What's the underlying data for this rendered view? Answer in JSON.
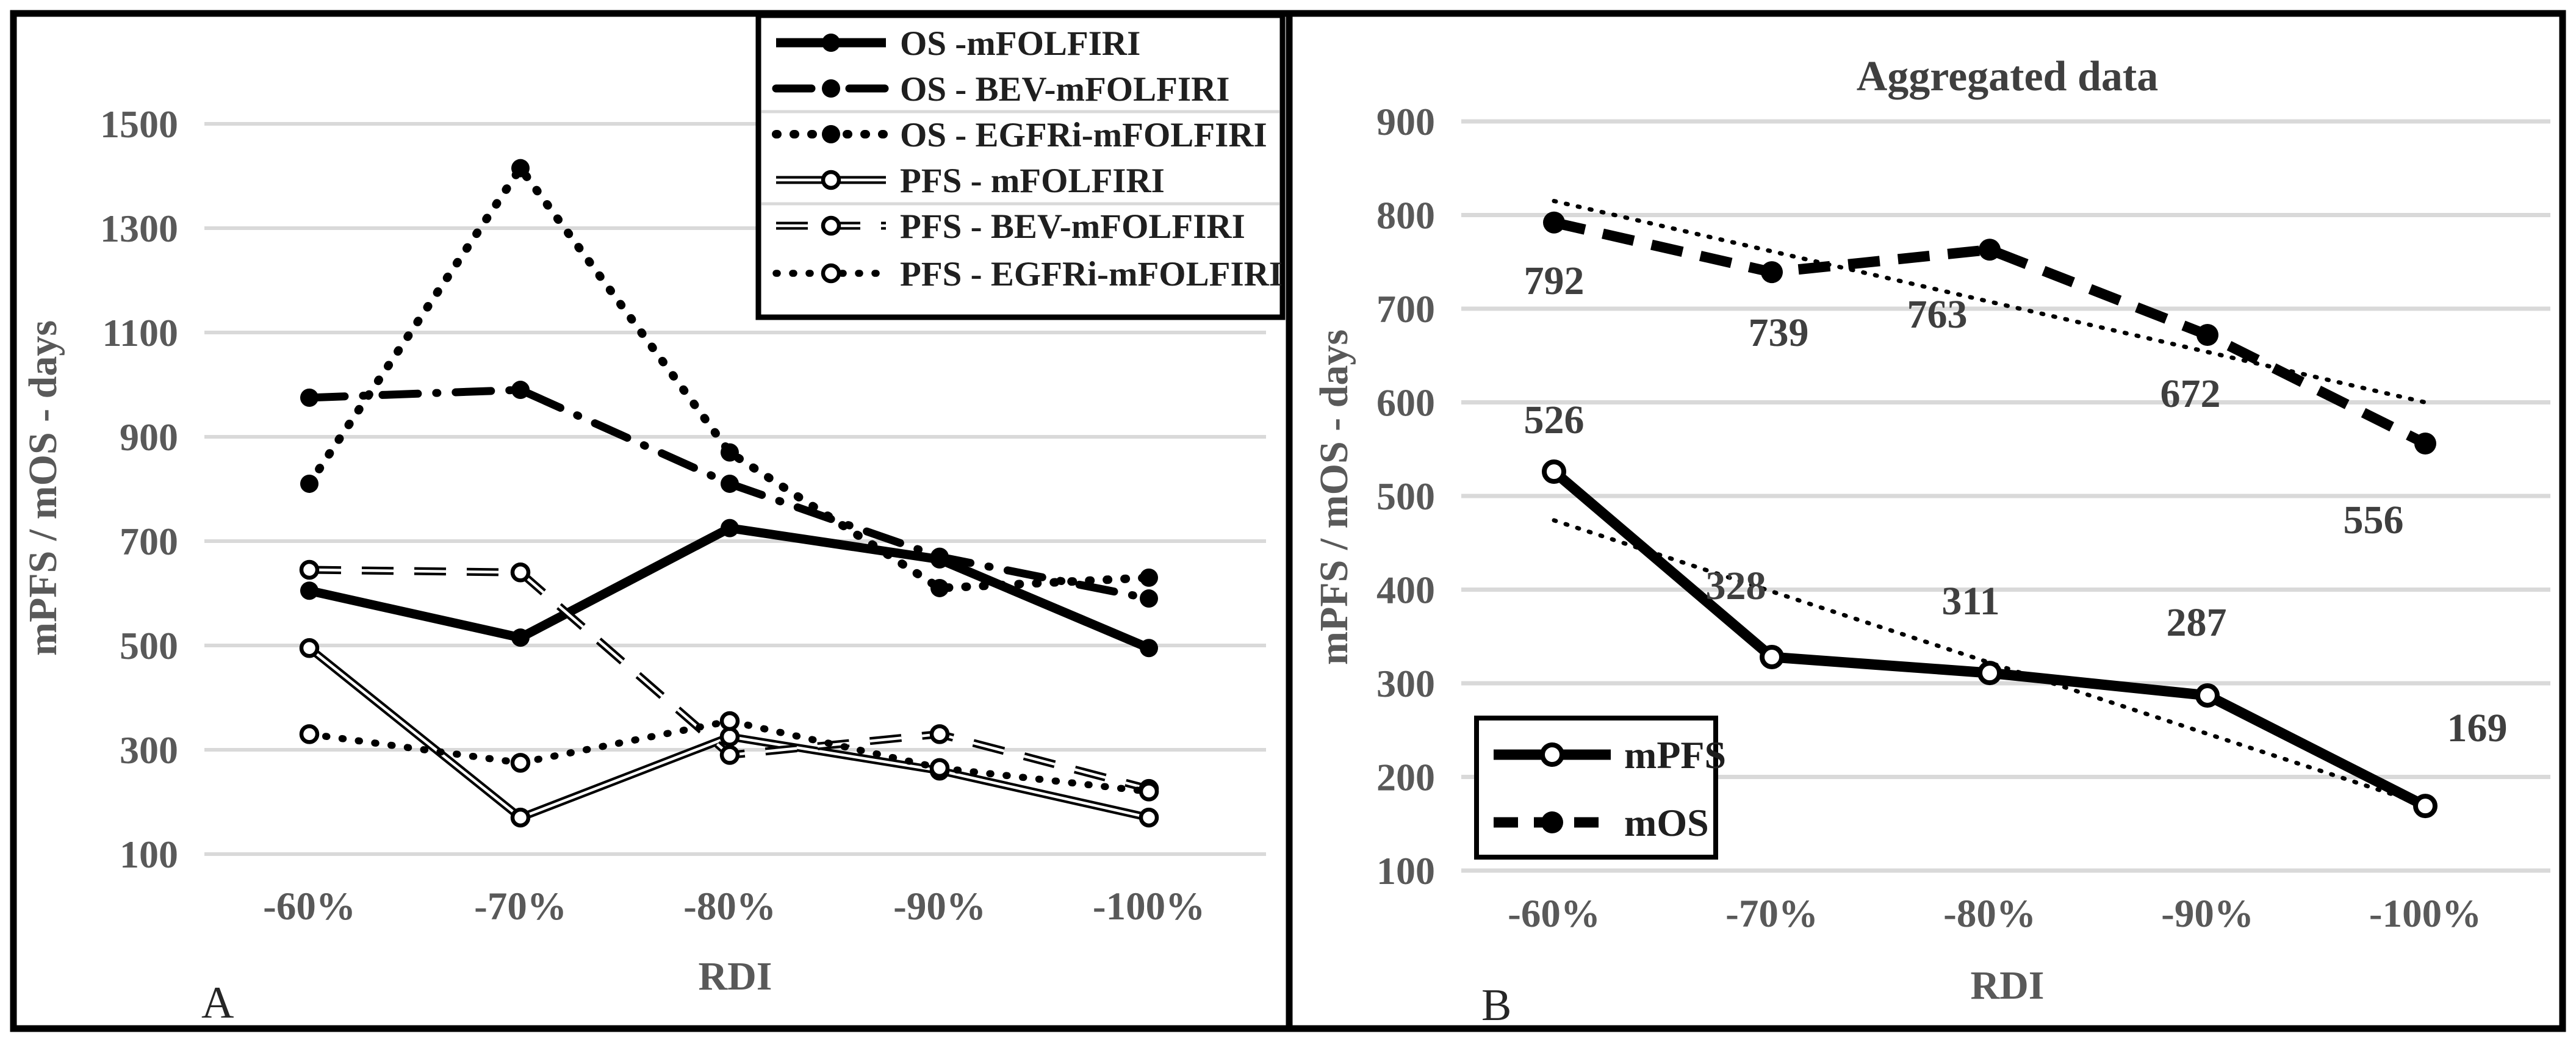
{
  "figure": {
    "panel_a_letter": "A",
    "panel_b_letter": "B",
    "background_color": "#ffffff",
    "frame_color": "#000000",
    "gridline_color": "#d9d9d9",
    "axis_text_color": "#595959",
    "series_color": "#000000"
  },
  "chart_data": [
    {
      "type": "line",
      "panel": "A",
      "title": "",
      "xlabel": "RDI",
      "ylabel": "mPFS / mOS - days",
      "categories": [
        "-60%",
        "-70%",
        "-80%",
        "-90%",
        "-100%"
      ],
      "ytick_labels": [
        "1500",
        "1300",
        "1100",
        "900",
        "700",
        "500",
        "300",
        "100"
      ],
      "yticks": [
        1500,
        1300,
        1100,
        900,
        700,
        500,
        300,
        100
      ],
      "ylim": [
        100,
        1500
      ],
      "grid": "horizontal",
      "legend_position": "top-right",
      "series": [
        {
          "name": "OS -mFOLFIRI",
          "values": [
            605,
            515,
            725,
            665,
            495
          ],
          "line": "solid-thick",
          "marker": "filled"
        },
        {
          "name": "OS - BEV-mFOLFIRI",
          "values": [
            975,
            990,
            810,
            670,
            590
          ],
          "line": "dash-dot",
          "marker": "filled"
        },
        {
          "name": "OS - EGFRi-mFOLFIRI",
          "values": [
            810,
            1415,
            870,
            610,
            630
          ],
          "line": "dotted",
          "marker": "filled"
        },
        {
          "name": "PFS - mFOLFIRI",
          "values": [
            495,
            170,
            325,
            260,
            170
          ],
          "line": "double-solid",
          "marker": "open"
        },
        {
          "name": "PFS - BEV-mFOLFIRI",
          "values": [
            645,
            640,
            290,
            330,
            225
          ],
          "line": "outlined-dash",
          "marker": "open"
        },
        {
          "name": "PFS - EGFRi-mFOLFIRI",
          "values": [
            330,
            275,
            355,
            265,
            220
          ],
          "line": "dotted",
          "marker": "open"
        }
      ]
    },
    {
      "type": "line",
      "panel": "B",
      "title": "Aggregated data",
      "xlabel": "RDI",
      "ylabel": "mPFS / mOS - days",
      "categories": [
        "-60%",
        "-70%",
        "-80%",
        "-90%",
        "-100%"
      ],
      "ytick_labels": [
        "900",
        "800",
        "700",
        "600",
        "500",
        "400",
        "300",
        "200",
        "100"
      ],
      "yticks": [
        900,
        800,
        700,
        600,
        500,
        400,
        300,
        200,
        100
      ],
      "ylim": [
        100,
        900
      ],
      "grid": "horizontal",
      "legend_position": "bottom-left",
      "series": [
        {
          "name": "mPFS",
          "values": [
            526,
            328,
            311,
            287,
            169
          ],
          "line": "solid-thick",
          "marker": "open",
          "data_labels": [
            "526",
            "328",
            "311",
            "287",
            "169"
          ]
        },
        {
          "name": "mOS",
          "values": [
            792,
            739,
            763,
            672,
            556
          ],
          "line": "dash",
          "marker": "filled",
          "data_labels": [
            "792",
            "739",
            "763",
            "672",
            "556"
          ]
        }
      ],
      "trendlines": [
        {
          "for": "mOS",
          "style": "dotted",
          "from": 815,
          "to": 600
        },
        {
          "for": "mPFS",
          "style": "dotted",
          "from": 474,
          "to": 170
        }
      ]
    }
  ]
}
